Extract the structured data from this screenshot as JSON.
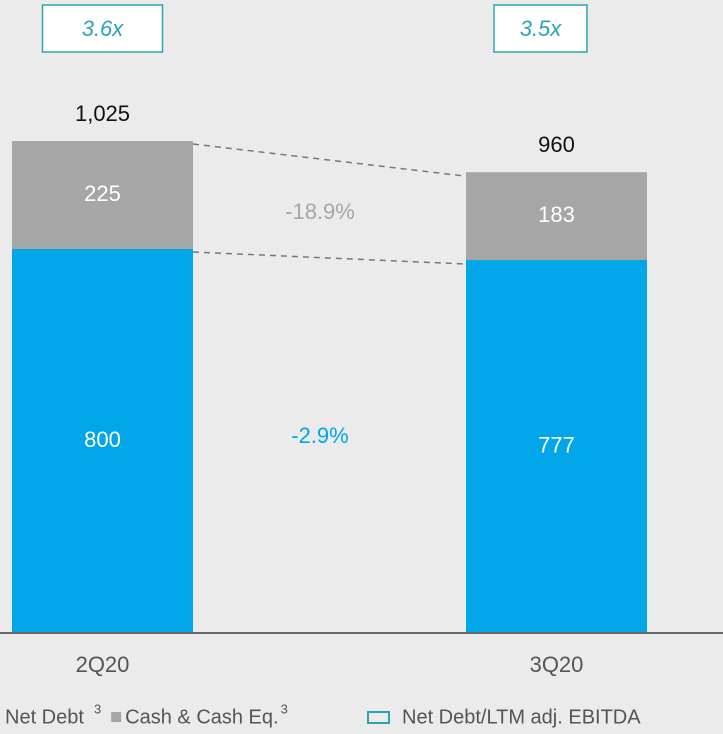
{
  "chart_data": {
    "type": "stacked_bar",
    "categories": [
      "2Q20",
      "3Q20"
    ],
    "series": [
      {
        "name": "Net Debt",
        "footnote": "3",
        "color": "#00a6e8",
        "label_color": "#ffffff",
        "values": [
          800,
          777
        ]
      },
      {
        "name": "Cash & Cash Eq.",
        "footnote": "3",
        "color": "#a6a6a6",
        "label_color": "#ffffff",
        "values": [
          225,
          183
        ]
      }
    ],
    "totals": {
      "values": [
        1025,
        960
      ],
      "value_labels": [
        "1,025",
        "960"
      ]
    },
    "ratio": {
      "name": "Net Debt/LTM adj. EBITDA",
      "color": "#2aa5b5",
      "values": [
        3.6,
        3.5
      ],
      "value_labels": [
        "3.6x",
        "3.5x"
      ]
    },
    "annotations": [
      {
        "text": "-18.9%",
        "color": "#a6a6a6"
      },
      {
        "text": "-2.9%",
        "color": "#00a6e8"
      }
    ]
  }
}
